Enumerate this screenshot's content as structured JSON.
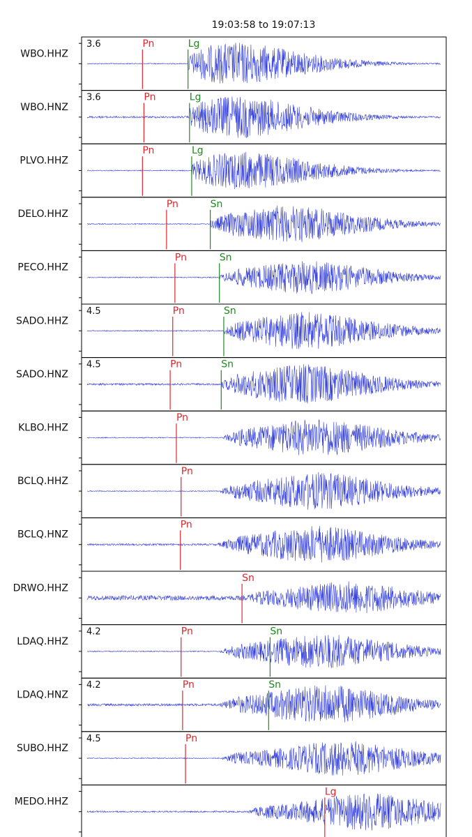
{
  "title": "19:03:58 to 19:07:13",
  "colors": {
    "trace": "#1f2bd6",
    "p_pick": "#e0262b",
    "s_pick": "#1e8a1e",
    "frame": "#000000"
  },
  "chart_data": {
    "type": "line",
    "title": "19:03:58 to 19:07:13",
    "xlabel": "",
    "ylabel": "",
    "grid": false,
    "traces": [
      {
        "station": "WBO.HHZ",
        "magnitude": "3.6",
        "picks": [
          {
            "phase": "Pn",
            "x": 0.167,
            "kind": "P"
          },
          {
            "phase": "Lg",
            "x": 0.292,
            "kind": "S"
          }
        ],
        "onset": 0.292,
        "peak": 0.44,
        "amp": 0.9,
        "noise": 0.02
      },
      {
        "station": "WBO.HNZ",
        "magnitude": "3.6",
        "picks": [
          {
            "phase": "Pn",
            "x": 0.171,
            "kind": "P"
          },
          {
            "phase": "Lg",
            "x": 0.296,
            "kind": "S"
          }
        ],
        "onset": 0.296,
        "peak": 0.44,
        "amp": 0.9,
        "noise": 0.04
      },
      {
        "station": "PLVO.HHZ",
        "magnitude": "",
        "picks": [
          {
            "phase": "Pn",
            "x": 0.167,
            "kind": "P"
          },
          {
            "phase": "Lg",
            "x": 0.302,
            "kind": "S"
          }
        ],
        "onset": 0.302,
        "peak": 0.46,
        "amp": 0.8,
        "noise": 0.02
      },
      {
        "station": "DELO.HHZ",
        "magnitude": "",
        "picks": [
          {
            "phase": "Pn",
            "x": 0.233,
            "kind": "P"
          },
          {
            "phase": "Sn",
            "x": 0.353,
            "kind": "S"
          }
        ],
        "onset": 0.353,
        "peak": 0.58,
        "amp": 0.8,
        "noise": 0.02
      },
      {
        "station": "PECO.HHZ",
        "magnitude": "",
        "picks": [
          {
            "phase": "Pn",
            "x": 0.256,
            "kind": "P"
          },
          {
            "phase": "Sn",
            "x": 0.378,
            "kind": "S"
          }
        ],
        "onset": 0.378,
        "peak": 0.63,
        "amp": 0.7,
        "noise": 0.02
      },
      {
        "station": "SADO.HHZ",
        "magnitude": "4.5",
        "picks": [
          {
            "phase": "Pn",
            "x": 0.25,
            "kind": "P"
          },
          {
            "phase": "Sn",
            "x": 0.39,
            "kind": "S"
          }
        ],
        "onset": 0.39,
        "peak": 0.63,
        "amp": 0.8,
        "noise": 0.02
      },
      {
        "station": "SADO.HNZ",
        "magnitude": "4.5",
        "picks": [
          {
            "phase": "Pn",
            "x": 0.243,
            "kind": "P"
          },
          {
            "phase": "Sn",
            "x": 0.383,
            "kind": "S"
          }
        ],
        "onset": 0.383,
        "peak": 0.62,
        "amp": 0.85,
        "noise": 0.04
      },
      {
        "station": "KLBO.HHZ",
        "magnitude": "",
        "picks": [
          {
            "phase": "Pn",
            "x": 0.26,
            "kind": "P"
          }
        ],
        "onset": 0.39,
        "peak": 0.66,
        "amp": 0.8,
        "noise": 0.02
      },
      {
        "station": "BCLQ.HHZ",
        "magnitude": "",
        "picks": [
          {
            "phase": "Pn",
            "x": 0.273,
            "kind": "P"
          }
        ],
        "onset": 0.38,
        "peak": 0.66,
        "amp": 0.8,
        "noise": 0.02
      },
      {
        "station": "BCLQ.HNZ",
        "magnitude": "",
        "picks": [
          {
            "phase": "Pn",
            "x": 0.271,
            "kind": "P"
          }
        ],
        "onset": 0.375,
        "peak": 0.66,
        "amp": 0.8,
        "noise": 0.04
      },
      {
        "station": "DRWO.HHZ",
        "magnitude": "",
        "picks": [
          {
            "phase": "Sn",
            "x": 0.44,
            "kind": "P"
          }
        ],
        "onset": 0.44,
        "peak": 0.74,
        "amp": 0.7,
        "noise": 0.1
      },
      {
        "station": "LDAQ.HHZ",
        "magnitude": "4.2",
        "picks": [
          {
            "phase": "Pn",
            "x": 0.273,
            "kind": "P"
          },
          {
            "phase": "Sn",
            "x": 0.517,
            "kind": "S"
          }
        ],
        "onset": 0.38,
        "peak": 0.68,
        "amp": 0.75,
        "noise": 0.02
      },
      {
        "station": "LDAQ.HNZ",
        "magnitude": "4.2",
        "picks": [
          {
            "phase": "Pn",
            "x": 0.277,
            "kind": "P"
          },
          {
            "phase": "Sn",
            "x": 0.513,
            "kind": "S"
          }
        ],
        "onset": 0.375,
        "peak": 0.68,
        "amp": 0.85,
        "noise": 0.05
      },
      {
        "station": "SUBO.HHZ",
        "magnitude": "4.5",
        "picks": [
          {
            "phase": "Pn",
            "x": 0.285,
            "kind": "P"
          }
        ],
        "onset": 0.38,
        "peak": 0.73,
        "amp": 0.75,
        "noise": 0.02
      },
      {
        "station": "MEDO.HHZ",
        "magnitude": "",
        "picks": [
          {
            "phase": "Lg",
            "x": 0.667,
            "kind": "P"
          }
        ],
        "onset": 0.45,
        "peak": 0.8,
        "amp": 0.8,
        "noise": 0.03
      }
    ]
  }
}
